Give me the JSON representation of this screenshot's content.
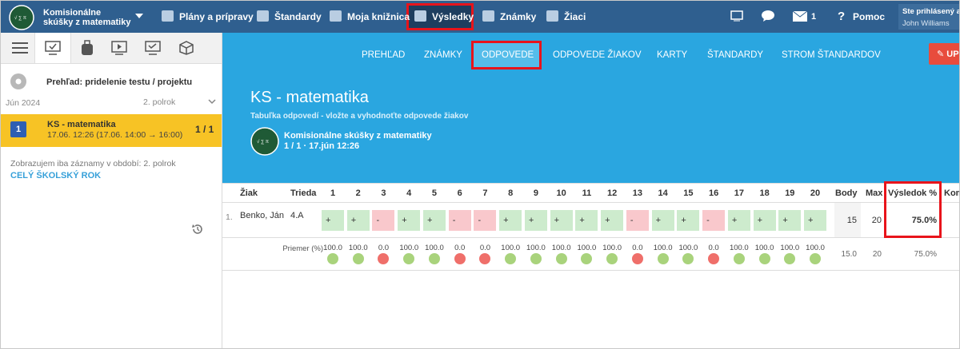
{
  "topbar": {
    "brand": "Komisionálne skúšky z matematiky",
    "menu": [
      "Plány a prípravy",
      "Štandardy",
      "Moja knižnica",
      "Výsledky",
      "Známky",
      "Žiaci"
    ],
    "messages_count": "1",
    "help": "Pomoc",
    "user_label": "Ste prihlásený ako",
    "user_name": "John Williams"
  },
  "sidebar": {
    "overview": "Prehľad: pridelenie testu / projektu",
    "month": "Jún 2024",
    "term": "2. polrok",
    "item": {
      "number": "1",
      "title": "KS - matematika",
      "time": "17.06. 12:26 (17.06. 14:00 → 16:00)",
      "count": "1 / 1"
    },
    "filter_note": "Zobrazujem iba záznamy v období: 2. polrok",
    "filter_link": "CELÝ ŠKOLSKÝ ROK"
  },
  "subnav": {
    "tabs": [
      "PREHĽAD",
      "ZNÁMKY",
      "ODPOVEDE",
      "ODPOVEDE ŽIAKOV",
      "KARTY",
      "ŠTANDARDY",
      "STROM ŠTANDARDOV"
    ],
    "button": "UPRAVIŤ"
  },
  "header": {
    "title": "KS - matematika",
    "subtitle": "Tabuľka odpovedí - vložte a vyhodnoťte odpovede žiakov",
    "group": "Komisionálne skúšky z matematiky",
    "meta": "1 / 1 · 17.jún 12:26"
  },
  "table": {
    "columns": {
      "student": "Žiak",
      "class": "Trieda",
      "questions": [
        "1",
        "2",
        "3",
        "4",
        "5",
        "6",
        "7",
        "8",
        "9",
        "10",
        "11",
        "12",
        "13",
        "14",
        "15",
        "16",
        "17",
        "18",
        "19",
        "20"
      ],
      "points": "Body",
      "max": "Max",
      "result": "Výsledok %",
      "comment": "Komentár"
    },
    "rows": [
      {
        "index": "1.",
        "name": "Benko, Ján",
        "class": "4.A",
        "answers": [
          "+",
          "+",
          "-",
          "+",
          "+",
          "-",
          "-",
          "+",
          "+",
          "+",
          "+",
          "+",
          "-",
          "+",
          "+",
          "-",
          "+",
          "+",
          "+",
          "+"
        ],
        "points": "15",
        "max": "20",
        "result": "75.0%"
      }
    ],
    "average": {
      "label": "Priemer (%)",
      "values": [
        "100.0",
        "100.0",
        "0.0",
        "100.0",
        "100.0",
        "0.0",
        "0.0",
        "100.0",
        "100.0",
        "100.0",
        "100.0",
        "100.0",
        "0.0",
        "100.0",
        "100.0",
        "0.0",
        "100.0",
        "100.0",
        "100.0",
        "100.0"
      ],
      "points": "15.0",
      "max": "20",
      "result": "75.0%"
    }
  }
}
